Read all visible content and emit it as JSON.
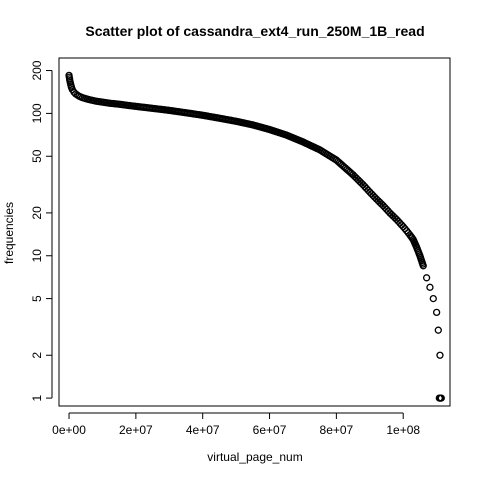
{
  "chart_data": {
    "type": "scatter",
    "title": "Scatter plot of cassandra_ext4_run_250M_1B_read",
    "xlabel": "virtual_page_num",
    "ylabel": "frequencies",
    "x_scale": "linear",
    "y_scale": "log",
    "xlim": [
      -3000000,
      114000000
    ],
    "ylim": [
      0.88,
      245
    ],
    "x_ticks": [
      {
        "value": 0,
        "label": "0e+00"
      },
      {
        "value": 20000000,
        "label": "2e+07"
      },
      {
        "value": 40000000,
        "label": "4e+07"
      },
      {
        "value": 60000000,
        "label": "6e+07"
      },
      {
        "value": 80000000,
        "label": "8e+07"
      },
      {
        "value": 100000000,
        "label": "1e+08"
      }
    ],
    "y_ticks": [
      {
        "value": 1,
        "label": "1"
      },
      {
        "value": 2,
        "label": "2"
      },
      {
        "value": 5,
        "label": "5"
      },
      {
        "value": 10,
        "label": "10"
      },
      {
        "value": 20,
        "label": "20"
      },
      {
        "value": 50,
        "label": "50"
      },
      {
        "value": 100,
        "label": "100"
      },
      {
        "value": 200,
        "label": "200"
      }
    ],
    "grid": false,
    "legend": "none",
    "marker": "open-circle",
    "marker_color": "#000000",
    "series": [
      {
        "x": [
          0,
          250000,
          500000,
          750000,
          1000000,
          1500000,
          2000000,
          3000000,
          4000000,
          5000000,
          6000000,
          8000000,
          10000000,
          12000000,
          15000000,
          18000000,
          20000000,
          25000000,
          30000000,
          35000000,
          40000000,
          45000000,
          50000000,
          55000000,
          60000000,
          65000000,
          70000000,
          75000000,
          80000000,
          85000000,
          88000000,
          90000000,
          92000000,
          94000000,
          96000000,
          98000000,
          100000000,
          101000000,
          102000000,
          103000000,
          104000000,
          105000000,
          106000000,
          107000000,
          108000000,
          109000000,
          110000000,
          110500000,
          111000000
        ],
        "y": [
          185,
          170,
          160,
          152,
          147,
          141,
          137,
          132,
          129,
          127,
          125,
          122,
          120,
          118,
          116,
          113.5,
          112,
          108.5,
          105,
          101,
          97,
          92.5,
          88,
          83,
          77,
          70.5,
          63,
          55.5,
          47,
          37,
          31.5,
          28,
          25,
          22.5,
          20,
          18,
          16,
          15,
          14,
          13,
          11.5,
          10,
          8.5,
          7,
          6,
          5,
          4,
          3,
          2
        ]
      },
      {
        "x": [
          110800000,
          111000000,
          111200000,
          111400000
        ],
        "y": [
          1,
          1,
          1,
          1
        ]
      }
    ]
  }
}
